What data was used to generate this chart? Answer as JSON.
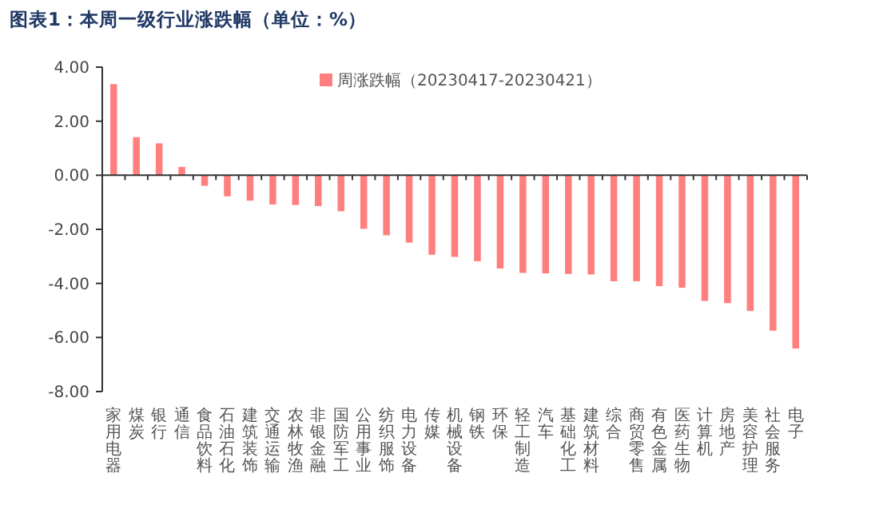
{
  "chart_data": {
    "type": "bar",
    "title": "图表1：本周一级行业涨跌幅（单位：%）",
    "categories": [
      "家用电器",
      "煤炭",
      "银行",
      "通信",
      "食品饮料",
      "石油石化",
      "建筑装饰",
      "交通运输",
      "农林牧渔",
      "非银金融",
      "国防军工",
      "公用事业",
      "纺织服饰",
      "电力设备",
      "传媒",
      "机械设备",
      "钢铁",
      "环保",
      "轻工制造",
      "汽车",
      "基础化工",
      "建筑材料",
      "综合",
      "商贸零售",
      "有色金属",
      "医药生物",
      "计算机",
      "房地产",
      "美容护理",
      "社会服务",
      "电子"
    ],
    "series": [
      {
        "name": "周涨跌幅（20230417-20230421）",
        "color": "#ff7f7f",
        "values": [
          3.37,
          1.41,
          1.18,
          0.31,
          -0.39,
          -0.78,
          -0.94,
          -1.08,
          -1.1,
          -1.14,
          -1.33,
          -1.98,
          -2.22,
          -2.49,
          -2.94,
          -3.02,
          -3.18,
          -3.45,
          -3.61,
          -3.63,
          -3.65,
          -3.67,
          -3.92,
          -3.92,
          -4.1,
          -4.16,
          -4.65,
          -4.73,
          -5.02,
          -5.75,
          -6.41
        ]
      }
    ],
    "ylim": [
      -8,
      4
    ],
    "yticks": [
      {
        "value": -8,
        "label": "-8.00"
      },
      {
        "value": -6,
        "label": "-6.00"
      },
      {
        "value": -4,
        "label": "-4.00"
      },
      {
        "value": -2,
        "label": "-2.00"
      },
      {
        "value": 0,
        "label": "0.00"
      },
      {
        "value": 2,
        "label": "2.00"
      },
      {
        "value": 4,
        "label": "4.00"
      }
    ],
    "legend": "top right"
  }
}
